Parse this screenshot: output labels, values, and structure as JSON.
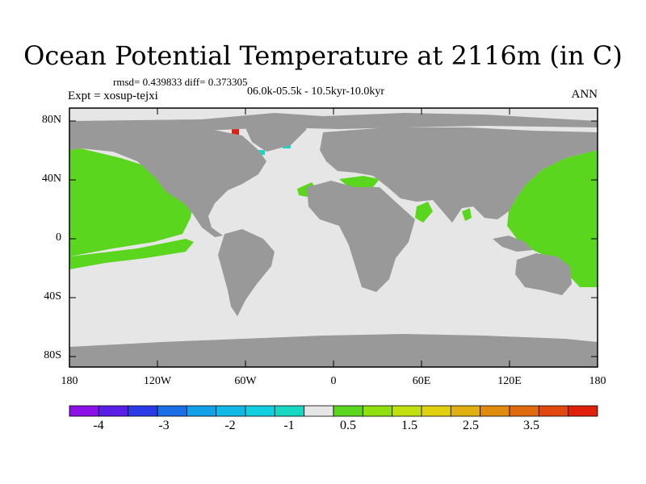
{
  "title": "Ocean Potential Temperature at 2116m (in C)",
  "stats": "rmsd= 0.439833 diff= 0.373305",
  "expt": "Expt = xosup-tejxi",
  "period": "06.0k-05.5k - 10.5kyr-10.0kyr",
  "season": "ANN",
  "lat_labels": [
    "80N",
    "40N",
    "0",
    "40S",
    "80S"
  ],
  "lon_labels": [
    "180",
    "120W",
    "60W",
    "0",
    "60E",
    "120E",
    "180"
  ],
  "colorbar": {
    "colors": [
      "#8a12e6",
      "#5a1ee6",
      "#2a3be6",
      "#1a6ee6",
      "#12a0e6",
      "#12b8e6",
      "#12cfe0",
      "#18d8c4",
      "#e6e6e6",
      "#5ad61e",
      "#8ee00e",
      "#c2e010",
      "#e0d010",
      "#e0b010",
      "#e08a0e",
      "#e06a0e",
      "#e0480e",
      "#e0200a"
    ],
    "labels": [
      "-4",
      "-3",
      "-2",
      "-1",
      "0.5",
      "1.5",
      "2.5",
      "3.5"
    ]
  },
  "legend_colors": {
    "land": "#999999",
    "near_zero": "#e6e6e6",
    "warm": "#5ad61e",
    "cool": "#18d8c4",
    "cool_strong": "#12b8e6",
    "hot": "#e0200a"
  }
}
